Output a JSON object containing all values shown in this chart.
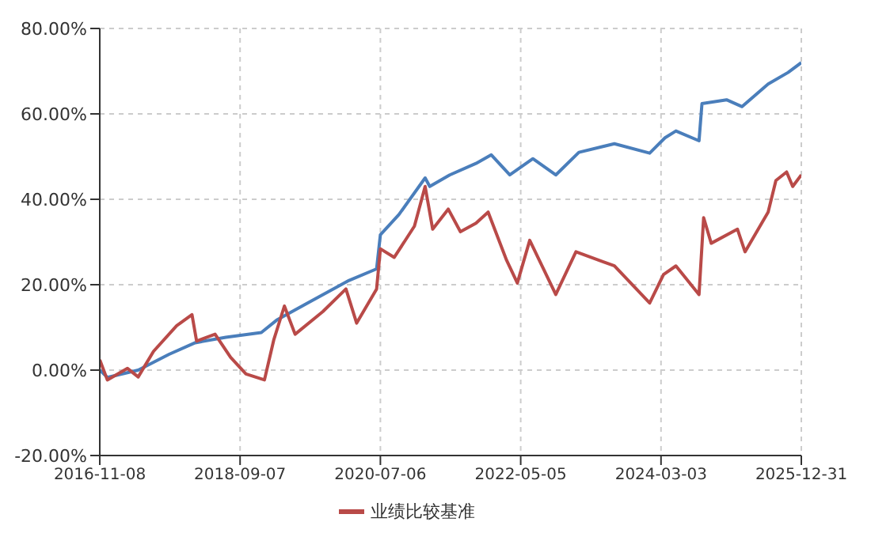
{
  "chart_data": {
    "type": "line",
    "xlim": [
      "2016-11-08",
      "2025-12-31"
    ],
    "xticks": [
      "2016-11-08",
      "2018-09-07",
      "2020-07-06",
      "2022-05-05",
      "2024-03-03",
      "2025-12-31"
    ],
    "ylim": [
      -20,
      80
    ],
    "yticks": [
      {
        "value": -20,
        "label": "-20.00%"
      },
      {
        "value": 0,
        "label": "0.00%"
      },
      {
        "value": 20,
        "label": "20.00%"
      },
      {
        "value": 40,
        "label": "40.00%"
      },
      {
        "value": 60,
        "label": "60.00%"
      },
      {
        "value": 80,
        "label": "80.00%"
      }
    ],
    "grid": true,
    "legend": "bottom",
    "marker": "none",
    "line_style": "solid",
    "series": [
      {
        "color": "#4a7ebb",
        "x": [
          "2016-11-08",
          "2016-12-14",
          "2017-05-10",
          "2017-10-04",
          "2018-02-05",
          "2018-07-01",
          "2018-12-17",
          "2019-02-28",
          "2019-07-25",
          "2020-02-08",
          "2020-06-18",
          "2020-07-06",
          "2020-10-02",
          "2021-02-04",
          "2021-02-26",
          "2021-06-01",
          "2021-10-04",
          "2021-12-16",
          "2022-03-14",
          "2022-07-02",
          "2022-10-19",
          "2023-02-06",
          "2023-07-25",
          "2024-01-09",
          "2024-03-22",
          "2024-05-13",
          "2024-08-31",
          "2024-09-14",
          "2025-01-09",
          "2025-03-24",
          "2025-07-26",
          "2025-10-29",
          "2025-12-31"
        ],
        "values": [
          0,
          -1.7,
          0,
          3.7,
          6.4,
          7.7,
          8.8,
          11.7,
          15.7,
          21,
          23.7,
          31.7,
          36.4,
          45,
          43,
          45.7,
          48.4,
          50.4,
          45.7,
          49.5,
          45.7,
          51,
          53,
          50.8,
          54.4,
          56,
          53.7,
          62.4,
          63.3,
          61.7,
          67,
          69.7,
          72
        ]
      },
      {
        "name": "业绩比较基准",
        "color": "#b94a48",
        "x": [
          "2016-11-08",
          "2016-12-14",
          "2017-03-20",
          "2017-05-10",
          "2017-07-22",
          "2017-11-09",
          "2018-01-21",
          "2018-02-12",
          "2018-05-11",
          "2018-07-24",
          "2018-10-05",
          "2019-01-01",
          "2019-02-14",
          "2019-04-06",
          "2019-05-27",
          "2019-10-06",
          "2020-01-24",
          "2020-03-15",
          "2020-06-18",
          "2020-07-06",
          "2020-09-10",
          "2020-12-15",
          "2021-02-04",
          "2021-03-12",
          "2021-05-25",
          "2021-07-22",
          "2021-10-04",
          "2021-12-01",
          "2022-02-27",
          "2022-04-19",
          "2022-06-17",
          "2022-10-19",
          "2023-01-23",
          "2023-07-25",
          "2024-01-09",
          "2024-03-15",
          "2024-05-13",
          "2024-08-31",
          "2024-09-22",
          "2024-10-28",
          "2025-03-02",
          "2025-04-07",
          "2025-07-26",
          "2025-09-01",
          "2025-10-22",
          "2025-11-20",
          "2025-12-31"
        ],
        "values": [
          2.4,
          -2.3,
          0.4,
          -1.6,
          4.4,
          10.4,
          13,
          6.8,
          8.4,
          3,
          -0.9,
          -2.3,
          7,
          15,
          8.4,
          13.7,
          19,
          11,
          19,
          28.4,
          26.4,
          33.7,
          43,
          33,
          37.7,
          32.4,
          34.4,
          37,
          25.7,
          20.4,
          30.4,
          17.7,
          27.7,
          24.4,
          15.7,
          22.4,
          24.4,
          17.7,
          35.7,
          29.7,
          33,
          27.7,
          37,
          44.4,
          46.4,
          43,
          45.7
        ]
      }
    ]
  }
}
